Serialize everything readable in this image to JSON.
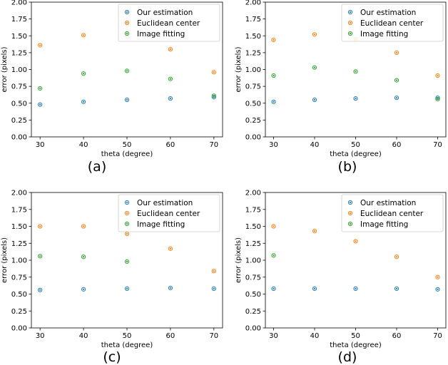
{
  "chart_data": [
    {
      "type": "scatter",
      "caption": "(a)",
      "xlabel": "theta (degree)",
      "ylabel": "error (pixels)",
      "x": [
        30,
        40,
        50,
        60,
        70
      ],
      "xlim": [
        28,
        72
      ],
      "ylim": [
        0,
        2.0
      ],
      "xticks": [
        "30",
        "40",
        "50",
        "60",
        "70"
      ],
      "yticks": [
        "0.00",
        "0.25",
        "0.50",
        "0.75",
        "1.00",
        "1.25",
        "1.50",
        "1.75",
        "2.00"
      ],
      "grid": false,
      "legend_position": "top-right",
      "series": [
        {
          "name": "Our estimation",
          "color": "#1f77b4",
          "values": [
            0.48,
            0.52,
            0.55,
            0.57,
            0.59
          ]
        },
        {
          "name": "Euclidean center",
          "color": "#ff7f0e",
          "values": [
            1.36,
            1.51,
            1.49,
            1.3,
            0.96
          ]
        },
        {
          "name": "Image fitting",
          "color": "#2ca02c",
          "values": [
            0.72,
            0.94,
            0.98,
            0.86,
            0.61
          ]
        }
      ]
    },
    {
      "type": "scatter",
      "caption": "(b)",
      "xlabel": "theta (degree)",
      "ylabel": "error (pixels)",
      "x": [
        30,
        40,
        50,
        60,
        70
      ],
      "xlim": [
        28,
        72
      ],
      "ylim": [
        0,
        2.0
      ],
      "xticks": [
        "30",
        "40",
        "50",
        "60",
        "70"
      ],
      "yticks": [
        "0.00",
        "0.25",
        "0.50",
        "0.75",
        "1.00",
        "1.25",
        "1.50",
        "1.75",
        "2.00"
      ],
      "grid": false,
      "legend_position": "top-right",
      "series": [
        {
          "name": "Our estimation",
          "color": "#1f77b4",
          "values": [
            0.52,
            0.55,
            0.57,
            0.58,
            0.58
          ]
        },
        {
          "name": "Euclidean center",
          "color": "#ff7f0e",
          "values": [
            1.44,
            1.52,
            1.45,
            1.25,
            0.91
          ]
        },
        {
          "name": "Image fitting",
          "color": "#2ca02c",
          "values": [
            0.91,
            1.03,
            0.97,
            0.84,
            0.56
          ]
        }
      ]
    },
    {
      "type": "scatter",
      "caption": "(c)",
      "xlabel": "theta (degree)",
      "ylabel": "error (pixels)",
      "x": [
        30,
        40,
        50,
        60,
        70
      ],
      "xlim": [
        28,
        72
      ],
      "ylim": [
        0,
        2.0
      ],
      "xticks": [
        "30",
        "40",
        "50",
        "60",
        "70"
      ],
      "yticks": [
        "0.00",
        "0.25",
        "0.50",
        "0.75",
        "1.00",
        "1.25",
        "1.50",
        "1.75",
        "2.00"
      ],
      "grid": false,
      "legend_position": "top-right",
      "series": [
        {
          "name": "Our estimation",
          "color": "#1f77b4",
          "values": [
            0.56,
            0.57,
            0.58,
            0.59,
            0.58
          ]
        },
        {
          "name": "Euclidean center",
          "color": "#ff7f0e",
          "values": [
            1.5,
            1.5,
            1.39,
            1.17,
            0.84
          ]
        },
        {
          "name": "Image fitting",
          "color": "#2ca02c",
          "values": [
            1.06,
            1.05,
            0.98,
            null,
            null
          ]
        }
      ]
    },
    {
      "type": "scatter",
      "caption": "(d)",
      "xlabel": "theta (degree)",
      "ylabel": "error (pixels)",
      "x": [
        30,
        40,
        50,
        60,
        70
      ],
      "xlim": [
        28,
        72
      ],
      "ylim": [
        0,
        2.0
      ],
      "xticks": [
        "30",
        "40",
        "50",
        "60",
        "70"
      ],
      "yticks": [
        "0.00",
        "0.25",
        "0.50",
        "0.75",
        "1.00",
        "1.25",
        "1.50",
        "1.75",
        "2.00"
      ],
      "grid": false,
      "legend_position": "top-right",
      "series": [
        {
          "name": "Our estimation",
          "color": "#1f77b4",
          "values": [
            0.58,
            0.58,
            0.58,
            0.58,
            0.57
          ]
        },
        {
          "name": "Euclidean center",
          "color": "#ff7f0e",
          "values": [
            1.5,
            1.43,
            1.28,
            1.05,
            0.75
          ]
        },
        {
          "name": "Image fitting",
          "color": "#2ca02c",
          "values": [
            1.07,
            null,
            null,
            null,
            null
          ]
        }
      ]
    }
  ]
}
